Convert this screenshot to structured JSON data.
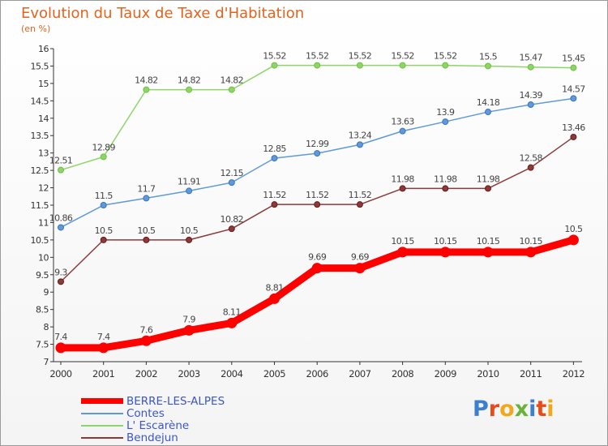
{
  "title": "Evolution du Taux de Taxe d'Habitation",
  "unit": "(en %)",
  "logo": {
    "text": "Proxiti",
    "colors": [
      "#3a7fd0",
      "#e84b1b",
      "#f0a81c",
      "#6ab33b",
      "#3a7fd0",
      "#e84b1b",
      "#f0a81c"
    ]
  },
  "chart_data": {
    "type": "line",
    "title": "Evolution du Taux de Taxe d'Habitation",
    "ylabel": "(en %)",
    "xlabel": "",
    "x": [
      "2000",
      "2001",
      "2002",
      "2003",
      "2004",
      "2005",
      "2006",
      "2007",
      "2008",
      "2009",
      "2010",
      "2011",
      "2012"
    ],
    "ylim": [
      7,
      16
    ],
    "yticks": [
      "7",
      "7.5",
      "8",
      "8.5",
      "9",
      "9.5",
      "10",
      "10.5",
      "11",
      "11.5",
      "12",
      "12.5",
      "13",
      "13.5",
      "14",
      "14.5",
      "15",
      "15.5",
      "16"
    ],
    "grid": false,
    "legend": "bottom-left",
    "series": [
      {
        "name": "BERRE-LES-ALPES",
        "color": "#ff0000",
        "emphasis": true,
        "values": [
          7.4,
          7.4,
          7.6,
          7.9,
          8.11,
          8.81,
          9.69,
          9.69,
          10.15,
          10.15,
          10.15,
          10.15,
          10.5
        ],
        "labels": [
          "7.4",
          "7.4",
          "7.6",
          "7.9",
          "8.11",
          "8.81",
          "9.69",
          "9.69",
          "10.15",
          "10.15",
          "10.15",
          "10.15",
          "10.5"
        ]
      },
      {
        "name": "Contes",
        "color": "#5f9ad8",
        "marker": "#3a72c0",
        "values": [
          10.86,
          11.5,
          11.7,
          11.91,
          12.15,
          12.85,
          12.99,
          13.24,
          13.63,
          13.9,
          14.18,
          14.39,
          14.57
        ],
        "labels": [
          "10.86",
          "11.5",
          "11.7",
          "11.91",
          "12.15",
          "12.85",
          "12.99",
          "13.24",
          "13.63",
          "13.9",
          "14.18",
          "14.39",
          "14.57"
        ]
      },
      {
        "name": "L' Escarène",
        "color": "#8fd46a",
        "marker": "#6cc23a",
        "values": [
          12.51,
          12.89,
          14.82,
          14.82,
          14.82,
          15.52,
          15.52,
          15.52,
          15.52,
          15.52,
          15.5,
          15.47,
          15.45
        ],
        "labels": [
          "12.51",
          "12.89",
          "14.82",
          "14.82",
          "14.82",
          "15.52",
          "15.52",
          "15.52",
          "15.52",
          "15.52",
          "15.5",
          "15.47",
          "15.45"
        ]
      },
      {
        "name": "Bendejun",
        "color": "#8b3a3a",
        "marker": "#6a1a1a",
        "values": [
          9.3,
          10.5,
          10.5,
          10.5,
          10.82,
          11.52,
          11.52,
          11.52,
          11.98,
          11.98,
          11.98,
          12.58,
          13.46
        ],
        "labels": [
          "9.3",
          "10.5",
          "10.5",
          "10.5",
          "10.82",
          "11.52",
          "11.52",
          "11.52",
          "11.98",
          "11.98",
          "11.98",
          "12.58",
          "13.46"
        ]
      }
    ]
  }
}
